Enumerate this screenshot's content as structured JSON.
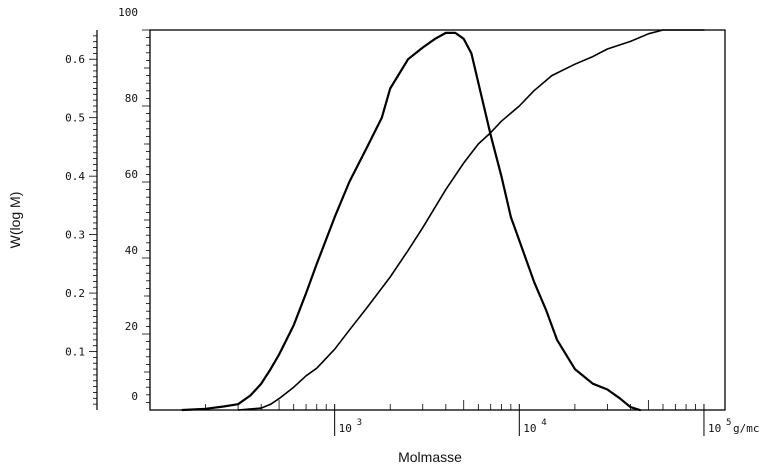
{
  "chart_data": {
    "type": "line",
    "xlabel": "Molmasse",
    "ylabel": "W(log M)",
    "x_unit": "g/mc",
    "x_scale": "log",
    "xlim": [
      100,
      130000
    ],
    "x_ticks": [
      {
        "value": 1000,
        "base": "10",
        "exp": "3"
      },
      {
        "value": 10000,
        "base": "10",
        "exp": "4"
      },
      {
        "value": 100000,
        "base": "10",
        "exp": "5"
      }
    ],
    "y_left": {
      "lim": [
        0,
        0.65
      ],
      "ticks": [
        "0.1",
        "0.2",
        "0.3",
        "0.4",
        "0.5",
        "0.6"
      ]
    },
    "y_right": {
      "lim": [
        0,
        100
      ],
      "ticks": [
        "0",
        "20",
        "40",
        "60",
        "80",
        "100"
      ]
    },
    "grid": false,
    "series": [
      {
        "axis": "left",
        "x": [
          150,
          200,
          250,
          300,
          350,
          400,
          450,
          500,
          600,
          700,
          800,
          1000,
          1200,
          1500,
          1800,
          2000,
          2500,
          3000,
          3500,
          4000,
          4500,
          5000,
          5500,
          6000,
          7000,
          8000,
          9000,
          10000,
          12000,
          14000,
          16000,
          20000,
          25000,
          30000,
          35000,
          40000,
          45000
        ],
        "y": [
          0,
          0.002,
          0.006,
          0.01,
          0.025,
          0.045,
          0.07,
          0.095,
          0.145,
          0.2,
          0.25,
          0.33,
          0.39,
          0.45,
          0.5,
          0.55,
          0.6,
          0.62,
          0.635,
          0.645,
          0.645,
          0.635,
          0.61,
          0.56,
          0.47,
          0.4,
          0.33,
          0.29,
          0.22,
          0.17,
          0.12,
          0.07,
          0.045,
          0.035,
          0.02,
          0.005,
          0
        ]
      },
      {
        "axis": "right",
        "x": [
          300,
          400,
          450,
          500,
          600,
          700,
          800,
          1000,
          1200,
          1500,
          2000,
          2500,
          3000,
          4000,
          5000,
          6000,
          7000,
          8000,
          10000,
          12000,
          15000,
          20000,
          25000,
          30000,
          40000,
          50000,
          60000,
          80000,
          100000
        ],
        "y": [
          0,
          0.5,
          1.5,
          3,
          6,
          9,
          11,
          16,
          21,
          27,
          35,
          42,
          48,
          58,
          65,
          70,
          73,
          76,
          80,
          84,
          88,
          91,
          93,
          95,
          97,
          99,
          100,
          100,
          100
        ]
      }
    ]
  }
}
